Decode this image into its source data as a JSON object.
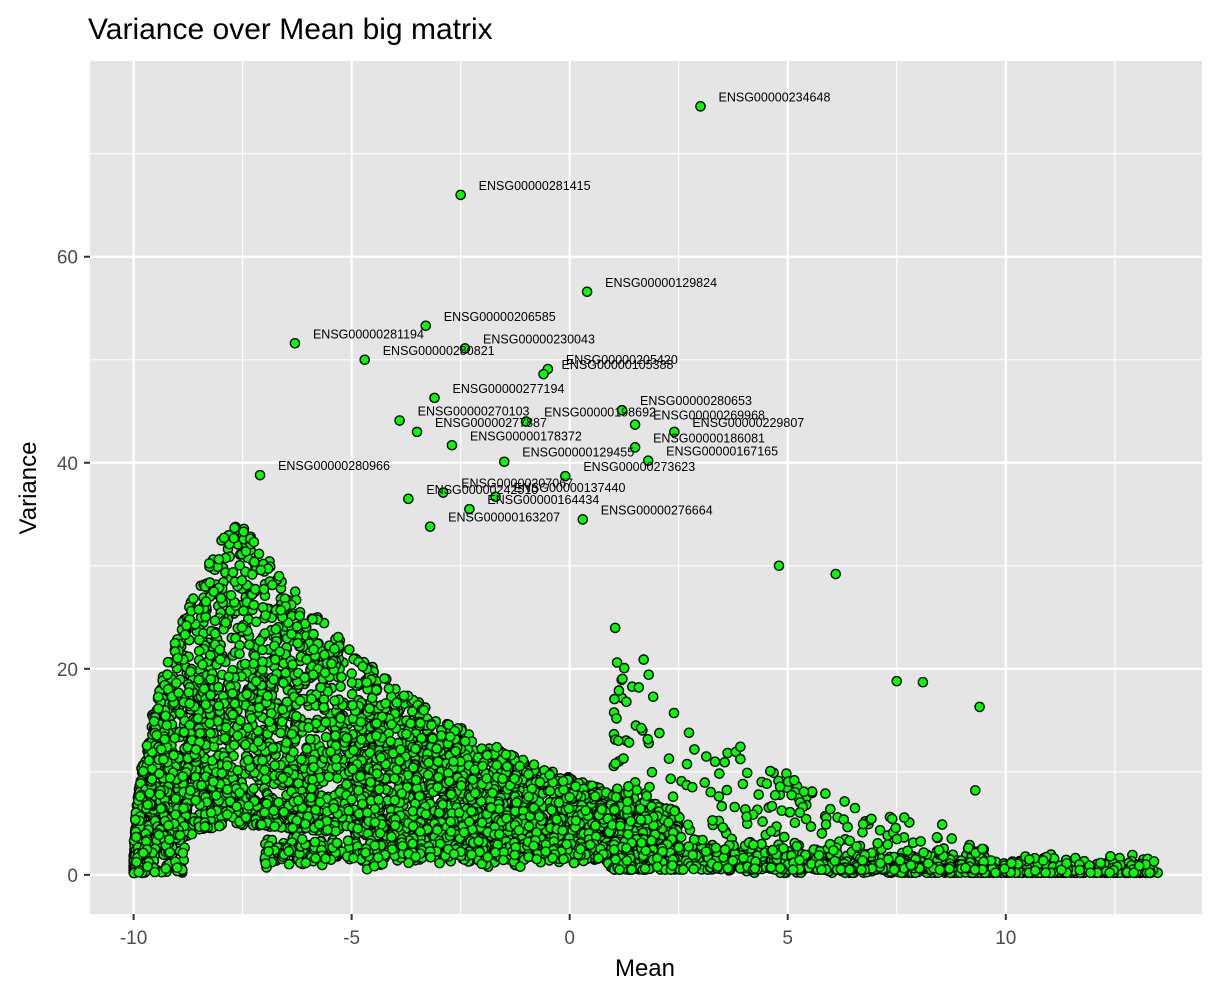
{
  "chart_data": {
    "type": "scatter",
    "title": "Variance over Mean big matrix",
    "xlabel": "Mean",
    "ylabel": "Variance",
    "xlim": [
      -11,
      14.5
    ],
    "ylim": [
      -3.8,
      79
    ],
    "x_ticks": [
      {
        "value": -10,
        "label": "-10"
      },
      {
        "value": -5,
        "label": "-5"
      },
      {
        "value": 0,
        "label": "0"
      },
      {
        "value": 5,
        "label": "5"
      },
      {
        "value": 10,
        "label": "10"
      }
    ],
    "y_ticks": [
      {
        "value": 0,
        "label": "0"
      },
      {
        "value": 20,
        "label": "20"
      },
      {
        "value": 40,
        "label": "40"
      },
      {
        "value": 60,
        "label": "60"
      }
    ],
    "grid": true,
    "panel_color": "#e5e5e5",
    "grid_color": "#ffffff",
    "point_fill": "#00ff00",
    "point_stroke": "#000000",
    "highlighted_points": [
      {
        "x": 3.0,
        "y": 74.6,
        "label": "ENSG00000234648"
      },
      {
        "x": -2.5,
        "y": 66.0,
        "label": "ENSG00000281415"
      },
      {
        "x": 0.4,
        "y": 56.6,
        "label": "ENSG00000129824"
      },
      {
        "x": -3.3,
        "y": 53.3,
        "label": "ENSG00000206585"
      },
      {
        "x": -6.3,
        "y": 51.6,
        "label": "ENSG00000281194"
      },
      {
        "x": -2.4,
        "y": 51.1,
        "label": "ENSG00000230043"
      },
      {
        "x": -4.7,
        "y": 50.0,
        "label": "ENSG00000280821"
      },
      {
        "x": -0.5,
        "y": 49.1,
        "label": "ENSG00000205420"
      },
      {
        "x": -0.6,
        "y": 48.6,
        "label": "ENSG00000105388"
      },
      {
        "x": -3.1,
        "y": 46.3,
        "label": "ENSG00000277194"
      },
      {
        "x": 1.2,
        "y": 45.1,
        "label": "ENSG00000280653"
      },
      {
        "x": -3.9,
        "y": 44.1,
        "label": "ENSG00000270103"
      },
      {
        "x": -1.0,
        "y": 44.0,
        "label": "ENSG00000198692"
      },
      {
        "x": 1.5,
        "y": 43.7,
        "label": "ENSG00000269968"
      },
      {
        "x": -3.5,
        "y": 43.0,
        "label": "ENSG00000277887"
      },
      {
        "x": 2.4,
        "y": 43.0,
        "label": "ENSG00000229807"
      },
      {
        "x": -2.7,
        "y": 41.7,
        "label": "ENSG00000178372"
      },
      {
        "x": 1.5,
        "y": 41.5,
        "label": "ENSG00000186081"
      },
      {
        "x": -1.5,
        "y": 40.1,
        "label": "ENSG00000129455"
      },
      {
        "x": 1.8,
        "y": 40.2,
        "label": "ENSG00000167165"
      },
      {
        "x": -7.1,
        "y": 38.8,
        "label": "ENSG00000280966"
      },
      {
        "x": -0.1,
        "y": 38.7,
        "label": "ENSG00000273623"
      },
      {
        "x": -2.9,
        "y": 37.1,
        "label": "ENSG00000207067"
      },
      {
        "x": -1.7,
        "y": 36.7,
        "label": "ENSG00000137440"
      },
      {
        "x": -3.7,
        "y": 36.5,
        "label": "ENSG00000242510"
      },
      {
        "x": 0.3,
        "y": 34.5,
        "label": "ENSG00000276664"
      },
      {
        "x": -2.3,
        "y": 35.5,
        "label": "ENSG00000164434"
      },
      {
        "x": -3.2,
        "y": 33.8,
        "label": "ENSG00000163207"
      },
      {
        "x": 9.4,
        "y": 16.3,
        "label": ""
      },
      {
        "x": 9.3,
        "y": 8.2,
        "label": ""
      },
      {
        "x": 8.1,
        "y": 18.7,
        "label": ""
      },
      {
        "x": 7.5,
        "y": 18.8,
        "label": ""
      },
      {
        "x": 6.1,
        "y": 29.2,
        "label": ""
      },
      {
        "x": 4.8,
        "y": 30.0,
        "label": ""
      },
      {
        "x": 13.4,
        "y": 1.3,
        "label": ""
      },
      {
        "x": 12.4,
        "y": 1.8,
        "label": ""
      }
    ]
  }
}
